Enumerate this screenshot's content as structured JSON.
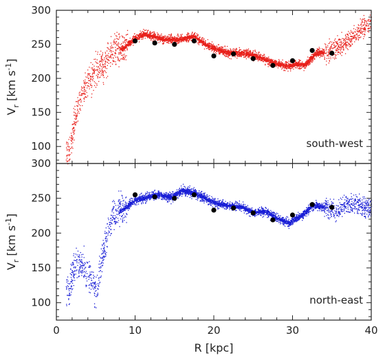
{
  "chart_data": [
    {
      "type": "scatter",
      "panel_label": "south-west",
      "ylabel": "V_r [km s^-1]",
      "xlim": [
        0,
        40
      ],
      "ylim": [
        75,
        300
      ],
      "x_ticks": [
        0,
        10,
        20,
        30,
        40
      ],
      "y_ticks": [
        100,
        150,
        200,
        250,
        300
      ],
      "show_x_tick_labels": false,
      "cloud_color": "#e8201b",
      "series": [
        {
          "marker": "black-dot",
          "x": [
            10.0,
            12.5,
            15.0,
            17.5,
            20.0,
            22.5,
            25.0,
            27.5,
            30.0,
            32.5,
            35.0
          ],
          "y": [
            255,
            252,
            250,
            255,
            233,
            236,
            229,
            219,
            226,
            241,
            237
          ]
        },
        {
          "marker": "point-cloud",
          "x": [
            1.5,
            2.5,
            3.5,
            4.5,
            5.0,
            6.0,
            7.0,
            8.5,
            10.0,
            11.0,
            12.5,
            13.5,
            15.0,
            16.5,
            17.5,
            19.0,
            20.5,
            22.0,
            23.5,
            25.0,
            26.5,
            28.0,
            29.5,
            30.5,
            31.5,
            33.0,
            34.5,
            36.5,
            38.5,
            40.0
          ],
          "y": [
            90,
            150,
            185,
            200,
            215,
            220,
            240,
            245,
            260,
            265,
            262,
            258,
            257,
            260,
            262,
            250,
            242,
            238,
            238,
            235,
            228,
            222,
            218,
            222,
            220,
            238,
            240,
            252,
            270,
            285
          ]
        }
      ]
    },
    {
      "type": "scatter",
      "panel_label": "north-east",
      "xlabel": "R [kpc]",
      "ylabel": "V_r [km s^-1]",
      "xlim": [
        0,
        40
      ],
      "ylim": [
        75,
        300
      ],
      "x_ticks": [
        0,
        10,
        20,
        30,
        40
      ],
      "y_ticks": [
        100,
        150,
        200,
        250,
        300
      ],
      "show_x_tick_labels": true,
      "cloud_color": "#1a1fd6",
      "series": [
        {
          "marker": "black-dot",
          "x": [
            10.0,
            12.5,
            15.0,
            17.5,
            20.0,
            22.5,
            25.0,
            27.5,
            30.0,
            32.5,
            35.0
          ],
          "y": [
            255,
            252,
            250,
            255,
            233,
            236,
            229,
            219,
            226,
            241,
            237
          ]
        },
        {
          "marker": "point-cloud",
          "x": [
            1.5,
            2.5,
            3.5,
            4.5,
            5.0,
            6.0,
            7.0,
            8.5,
            10.0,
            11.5,
            13.0,
            14.5,
            16.0,
            17.5,
            19.0,
            20.5,
            22.0,
            23.5,
            25.0,
            26.5,
            28.0,
            29.5,
            31.0,
            32.5,
            34.0,
            35.5,
            37.0,
            38.5,
            40.0
          ],
          "y": [
            120,
            160,
            150,
            130,
            115,
            175,
            225,
            235,
            248,
            252,
            256,
            252,
            262,
            258,
            250,
            242,
            240,
            238,
            230,
            232,
            222,
            215,
            225,
            240,
            238,
            232,
            245,
            240,
            235
          ]
        }
      ]
    }
  ]
}
